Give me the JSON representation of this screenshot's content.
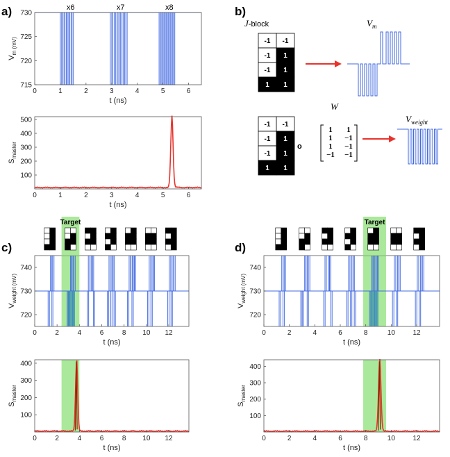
{
  "panels": {
    "a": "a)",
    "b": "b)",
    "c": "c)",
    "d": "d)"
  },
  "colors": {
    "blue": "#4169e1",
    "red": "#e8322b",
    "dark_red": "#8b2500",
    "green": "#9be58a",
    "black": "#000000",
    "arrow": "#e8322b"
  },
  "schematic": {
    "jblock_label": "J-block",
    "vm_label": "V",
    "vm_sub": "m",
    "w_label": "W",
    "vweight_label": "V",
    "vweight_sub": "weight",
    "hadamard_symbol": "o",
    "jblock": [
      [
        "-1",
        "-1"
      ],
      [
        "-1",
        "1"
      ],
      [
        "-1",
        "1"
      ],
      [
        "1",
        "1"
      ]
    ],
    "w_matrix": [
      [
        "1",
        "1"
      ],
      [
        "1",
        "−1"
      ],
      [
        "1",
        "−1"
      ],
      [
        "−1",
        "−1"
      ]
    ]
  },
  "target_label": "Target",
  "chart_data": [
    {
      "id": "a_top",
      "type": "line",
      "title": "",
      "xlabel": "t (ns)",
      "ylabel": "V",
      "ylabel_sub": "m (mV)",
      "xlim": [
        0,
        6.5
      ],
      "ylim": [
        715,
        730
      ],
      "xticks": [
        "0",
        "1",
        "2",
        "3",
        "4",
        "5",
        "6"
      ],
      "yticks": [
        "715",
        "720",
        "725",
        "730"
      ],
      "annotations": [
        {
          "text": "x6",
          "x": 1.4
        },
        {
          "text": "x7",
          "x": 3.35
        },
        {
          "text": "x8",
          "x": 5.25
        }
      ],
      "pulse_groups": [
        {
          "start": 1.0,
          "end": 1.55,
          "count": 6
        },
        {
          "start": 2.95,
          "end": 3.65,
          "count": 7
        },
        {
          "start": 4.85,
          "end": 5.5,
          "count": 8
        }
      ],
      "baseline": 730,
      "low": 715
    },
    {
      "id": "a_bottom",
      "type": "line",
      "xlabel": "t (ns)",
      "ylabel": "S",
      "ylabel_sub": "master",
      "xlim": [
        0,
        6.5
      ],
      "ylim": [
        0,
        520
      ],
      "xticks": [
        "0",
        "1",
        "2",
        "3",
        "4",
        "5",
        "6"
      ],
      "yticks": [
        "100",
        "200",
        "300",
        "400",
        "500"
      ],
      "peak_x": 5.35,
      "peak_y": 510,
      "baseline": 10
    },
    {
      "id": "c_top",
      "type": "line",
      "xlabel": "t (ns)",
      "ylabel": "V",
      "ylabel_sub": "weight (mV)",
      "xlim": [
        0,
        13.8
      ],
      "ylim": [
        715,
        745
      ],
      "xticks": [
        "0",
        "2",
        "4",
        "6",
        "8",
        "10",
        "12"
      ],
      "yticks": [
        "720",
        "730",
        "740"
      ],
      "target_range": [
        2.4,
        4.0
      ],
      "block_centers": [
        1.35,
        3.2,
        5.0,
        6.8,
        8.6,
        10.4,
        12.2
      ],
      "baseline": 730
    },
    {
      "id": "c_bottom",
      "type": "line",
      "xlabel": "t (ns)",
      "ylabel": "S",
      "ylabel_sub": "master",
      "xlim": [
        0,
        13.8
      ],
      "ylim": [
        0,
        420
      ],
      "xticks": [
        "0",
        "2",
        "4",
        "6",
        "8",
        "10",
        "12"
      ],
      "yticks": [
        "100",
        "200",
        "300",
        "400"
      ],
      "target_range": [
        2.4,
        4.0
      ],
      "peak_x": 3.75,
      "peak_y": 410,
      "baseline": 5
    },
    {
      "id": "d_top",
      "type": "line",
      "xlabel": "t (ns)",
      "ylabel": "V",
      "ylabel_sub": "weight (mV)",
      "xlim": [
        0,
        13.8
      ],
      "ylim": [
        715,
        745
      ],
      "xticks": [
        "0",
        "2",
        "4",
        "6",
        "8",
        "10",
        "12"
      ],
      "yticks": [
        "720",
        "730",
        "740"
      ],
      "target_range": [
        7.8,
        9.6
      ],
      "block_centers": [
        1.35,
        3.2,
        5.0,
        6.8,
        8.6,
        10.4,
        12.2
      ],
      "baseline": 730
    },
    {
      "id": "d_bottom",
      "type": "line",
      "xlabel": "t (ns)",
      "ylabel": "S",
      "ylabel_sub": "master",
      "xlim": [
        0,
        13.8
      ],
      "ylim": [
        0,
        440
      ],
      "xticks": [
        "0",
        "2",
        "4",
        "6",
        "8",
        "10",
        "12"
      ],
      "yticks": [
        "100",
        "200",
        "300",
        "400"
      ],
      "target_range": [
        7.8,
        9.6
      ],
      "peak_x": 9.1,
      "peak_y": 430,
      "baseline": 5
    }
  ]
}
